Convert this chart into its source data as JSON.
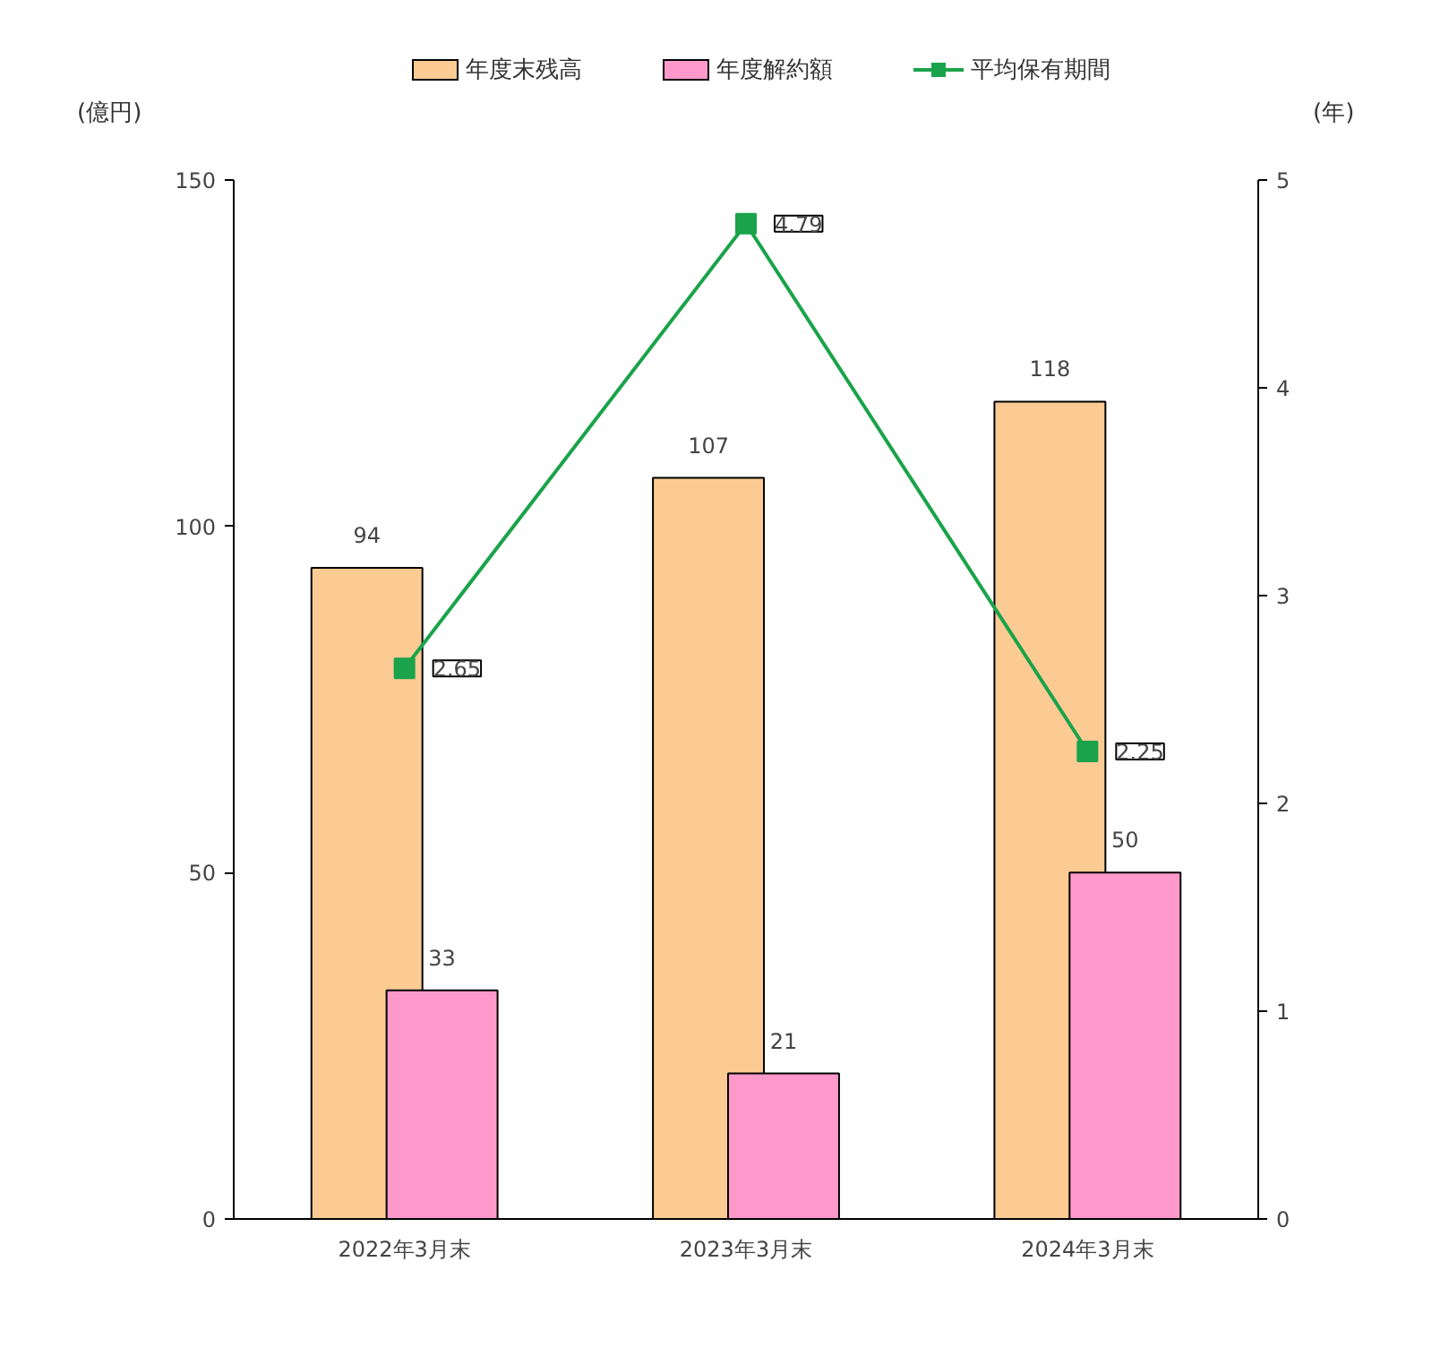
{
  "chart_data": {
    "type": "bar",
    "categories": [
      "2022年3月末",
      "2023年3月末",
      "2024年3月末"
    ],
    "ylabel": "(億円)",
    "y2label": "(年)",
    "series": [
      {
        "name": "年度末残高",
        "color": "#fccb94",
        "values": [
          94,
          107,
          118
        ]
      },
      {
        "name": "年度解約額",
        "color": "#ff99cc",
        "values": [
          33,
          21,
          50
        ]
      },
      {
        "name": "平均保有期間",
        "color": "#1aa34a",
        "type": "line",
        "axis": "y2",
        "marker": "square",
        "values": [
          2.65,
          4.79,
          2.25
        ]
      }
    ],
    "ylim": [
      0,
      150
    ],
    "yticks": [
      0,
      50,
      100,
      150
    ],
    "y2lim": [
      0,
      5
    ],
    "y2ticks": [
      0,
      1,
      2,
      3,
      4,
      5
    ],
    "data_labels": true,
    "grid": false,
    "legend": "top"
  }
}
